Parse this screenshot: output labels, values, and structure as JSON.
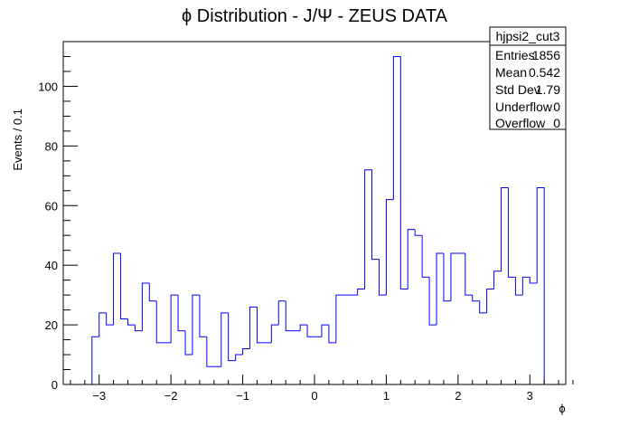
{
  "chart_data": {
    "type": "bar",
    "style": "step-histogram",
    "title": "ϕ Distribution - J/Ψ - ZEUS DATA",
    "xlabel": "ϕ",
    "ylabel": "Events / 0.1",
    "xlim": [
      -3.5,
      3.5
    ],
    "ylim": [
      0,
      115
    ],
    "bin_width": 0.1,
    "bins_start": -3.1,
    "x_ticks": [
      -3,
      -2,
      -1,
      0,
      1,
      2,
      3
    ],
    "x_tick_labels": [
      "−3",
      "−2",
      "−1",
      "0",
      "1",
      "2",
      "3"
    ],
    "y_ticks": [
      0,
      20,
      40,
      60,
      80,
      100
    ],
    "y_tick_labels": [
      "0",
      "20",
      "40",
      "60",
      "80",
      "100"
    ],
    "series": [
      {
        "color": "#0000ff",
        "values": [
          16,
          24,
          20,
          44,
          22,
          20,
          18,
          34,
          28,
          14,
          14,
          30,
          18,
          10,
          30,
          16,
          6,
          6,
          24,
          8,
          10,
          12,
          26,
          14,
          14,
          20,
          28,
          18,
          18,
          20,
          16,
          16,
          20,
          14,
          30,
          30,
          30,
          32,
          72,
          42,
          30,
          62,
          110,
          32,
          52,
          50,
          36,
          20,
          44,
          28,
          44,
          44,
          30,
          28,
          24,
          32,
          38,
          66,
          36,
          30,
          36,
          34,
          66
        ]
      }
    ],
    "stats_box": {
      "name": "hjpsi2_cut3",
      "rows": [
        {
          "label": "Entries",
          "value": "1856"
        },
        {
          "label": "Mean",
          "value": "0.542"
        },
        {
          "label": "Std Dev",
          "value": "1.79"
        },
        {
          "label": "Underflow",
          "value": "0"
        },
        {
          "label": "Overflow",
          "value": "0"
        }
      ]
    }
  }
}
